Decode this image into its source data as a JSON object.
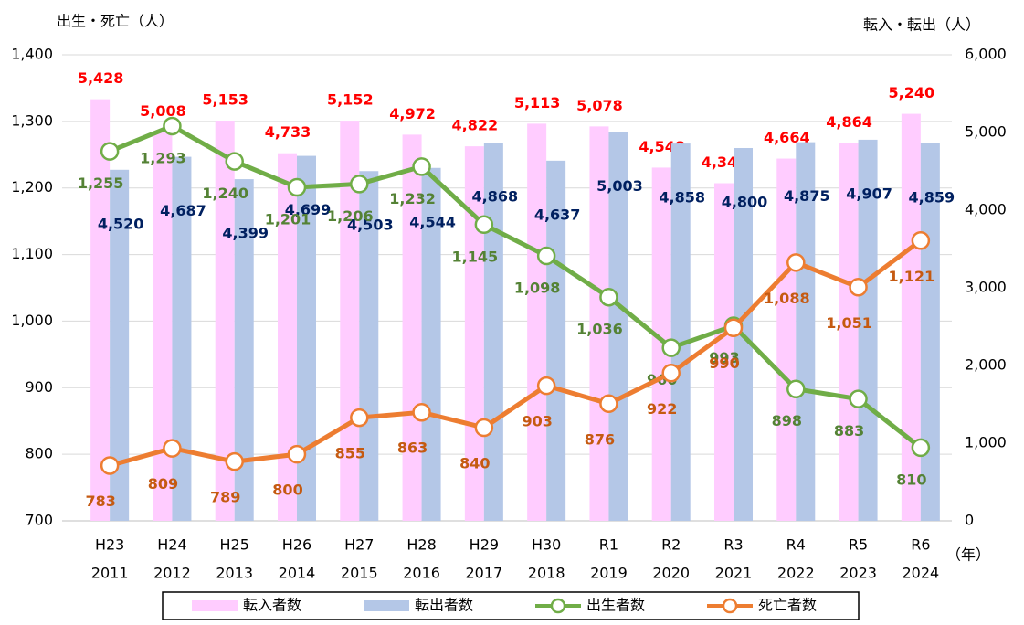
{
  "chart_data": {
    "type": "bar-line",
    "y_label": "出生・死亡（人）",
    "y2_label": "転入・転出（人）",
    "x_label": "（年）",
    "categories": [
      "H23",
      "H24",
      "H25",
      "H26",
      "H27",
      "H28",
      "H29",
      "H30",
      "R1",
      "R2",
      "R3",
      "R4",
      "R5",
      "R6"
    ],
    "category_years": [
      "2011",
      "2012",
      "2013",
      "2014",
      "2015",
      "2016",
      "2017",
      "2018",
      "2019",
      "2020",
      "2021",
      "2022",
      "2023",
      "2024"
    ],
    "ylim": [
      700,
      1400
    ],
    "yticks": [
      700,
      800,
      900,
      {
        "value": 1000,
        "label": "1,000"
      },
      {
        "value": 1100,
        "label": "1,100"
      },
      {
        "value": 1200,
        "label": "1,200"
      },
      {
        "value": 1300,
        "label": "1,300"
      },
      {
        "value": 1400,
        "label": "1,400"
      }
    ],
    "y2lim": [
      0,
      6000
    ],
    "y2ticks": [
      0,
      {
        "value": 1000,
        "label": "1,000"
      },
      {
        "value": 2000,
        "label": "2,000"
      },
      {
        "value": 3000,
        "label": "3,000"
      },
      {
        "value": 4000,
        "label": "4,000"
      },
      {
        "value": 5000,
        "label": "5,000"
      },
      {
        "value": 6000,
        "label": "6,000"
      }
    ],
    "grid": true,
    "series": [
      {
        "name": "転入者数",
        "kind": "bar",
        "axis": "y2",
        "color": "#ffccff",
        "label_color": "#ff0000",
        "values": [
          5428,
          5008,
          5153,
          4733,
          5152,
          4972,
          4822,
          5113,
          5078,
          4548,
          4347,
          4664,
          4864,
          5240
        ],
        "value_labels": [
          "5,428",
          "5,008",
          "5,153",
          "4,733",
          "5,152",
          "4,972",
          "4,822",
          "5,113",
          "5,078",
          "4,548",
          "4,347",
          "4,664",
          "4,864",
          "5,240"
        ]
      },
      {
        "name": "転出者数",
        "kind": "bar",
        "axis": "y2",
        "color": "#b4c7e7",
        "label_color": "#002060",
        "values": [
          4520,
          4687,
          4399,
          4699,
          4503,
          4544,
          4868,
          4637,
          5003,
          4858,
          4800,
          4875,
          4907,
          4859
        ],
        "value_labels": [
          "4,520",
          "4,687",
          "4,399",
          "4,699",
          "4,503",
          "4,544",
          "4,868",
          "4,637",
          "5,003",
          "4,858",
          "4,800",
          "4,875",
          "4,907",
          "4,859"
        ]
      },
      {
        "name": "出生者数",
        "kind": "line",
        "color": "#70ad47",
        "label_color": "#548235",
        "values": [
          1255,
          1293,
          1240,
          1201,
          1206,
          1232,
          1145,
          1098,
          1036,
          960,
          993,
          898,
          883,
          810
        ],
        "value_labels": [
          "1,255",
          "1,293",
          "1,240",
          "1,201",
          "1,206",
          "1,232",
          "1,145",
          "1,098",
          "1,036",
          "960",
          "993",
          "898",
          "883",
          "810"
        ]
      },
      {
        "name": "死亡者数",
        "kind": "line",
        "color": "#ed7d31",
        "label_color": "#c55a11",
        "values": [
          783,
          809,
          789,
          800,
          855,
          863,
          840,
          903,
          876,
          922,
          990,
          1088,
          1051,
          1121
        ],
        "value_labels": [
          "783",
          "809",
          "789",
          "800",
          "855",
          "863",
          "840",
          "903",
          "876",
          "922",
          "990",
          "1,088",
          "1,051",
          "1,121"
        ]
      }
    ]
  }
}
